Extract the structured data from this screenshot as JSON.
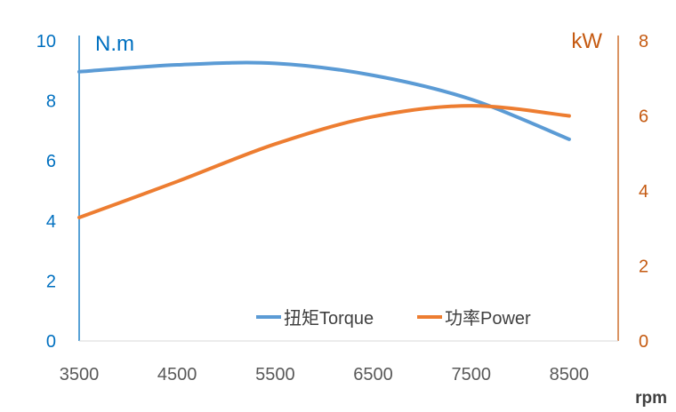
{
  "chart_data": {
    "type": "line",
    "title": "",
    "xlabel": "rpm",
    "ylabel_left": "N.m",
    "ylabel_right": "kW",
    "x": [
      3500,
      4500,
      5500,
      6500,
      7500,
      8500
    ],
    "xlim": [
      3500,
      9000
    ],
    "x_ticks": [
      "3500",
      "4500",
      "5500",
      "6500",
      "7500",
      "8500"
    ],
    "ylim_left": [
      0,
      10
    ],
    "y_ticks_left": [
      "0",
      "2",
      "4",
      "6",
      "8",
      "10"
    ],
    "ylim_right": [
      0,
      8
    ],
    "y_ticks_right": [
      "0",
      "2",
      "4",
      "6",
      "8"
    ],
    "grid": false,
    "legend_position": "bottom-center",
    "series": [
      {
        "name": "扭矩Torque",
        "axis": "left",
        "color": "#5B9BD5",
        "values": [
          8.97,
          9.2,
          9.25,
          8.85,
          8.05,
          6.72
        ]
      },
      {
        "name": "功率Power",
        "axis": "right",
        "color": "#ED7D31",
        "values": [
          3.29,
          4.25,
          5.25,
          5.98,
          6.27,
          6.0
        ]
      }
    ],
    "colors": {
      "left_axis": "#0070C0",
      "right_axis": "#C55A11",
      "tick_x": "#595959"
    }
  }
}
